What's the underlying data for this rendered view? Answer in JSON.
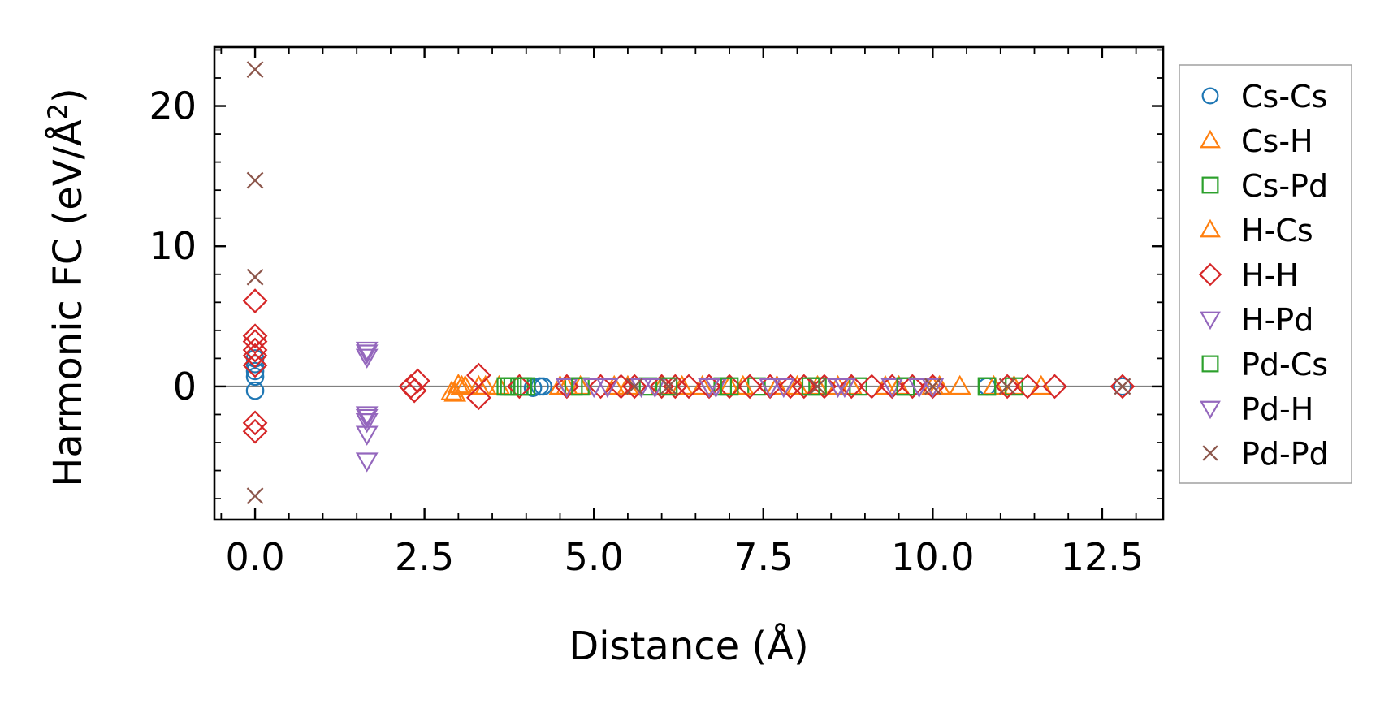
{
  "chart_data": {
    "type": "scatter",
    "title": "",
    "xlabel": "Distance (Å)",
    "ylabel_main": "Harmonic FC (eV/Å",
    "ylabel_sup": "2",
    "ylabel_close": ")",
    "xlim": [
      -0.6,
      13.4
    ],
    "ylim": [
      -9.5,
      24.2
    ],
    "xticks": [
      0.0,
      2.5,
      5.0,
      7.5,
      10.0,
      12.5
    ],
    "xtick_labels": [
      "0.0",
      "2.5",
      "5.0",
      "7.5",
      "10.0",
      "12.5"
    ],
    "yticks": [
      0,
      10,
      20
    ],
    "ytick_labels": [
      "0",
      "10",
      "20"
    ],
    "reference_line_y": 0,
    "legend_position": "outside right",
    "series": [
      {
        "name": "Cs-Cs",
        "marker": "circle",
        "color": "#1f77b4",
        "points": [
          [
            0,
            -0.3
          ],
          [
            0,
            0.7
          ],
          [
            0,
            1.1
          ],
          [
            0,
            1.6
          ],
          [
            0,
            2.0
          ],
          [
            4.1,
            -0.1
          ],
          [
            4.2,
            0.0
          ],
          [
            4.25,
            0.0
          ],
          [
            10.8,
            0.0
          ],
          [
            12.8,
            0.0
          ]
        ]
      },
      {
        "name": "Cs-H",
        "marker": "triangle-up",
        "color": "#ff7f0e",
        "points": [
          [
            2.95,
            -0.5
          ],
          [
            3.0,
            0.1
          ],
          [
            3.1,
            0.0
          ],
          [
            3.4,
            0.0
          ],
          [
            3.6,
            0.0
          ],
          [
            4.5,
            0.0
          ],
          [
            4.8,
            0.0
          ],
          [
            5.3,
            0.0
          ],
          [
            6.0,
            0.0
          ],
          [
            6.6,
            0.0
          ],
          [
            7.0,
            0.0
          ],
          [
            7.7,
            0.0
          ],
          [
            8.3,
            0.0
          ],
          [
            8.8,
            0.0
          ],
          [
            9.5,
            0.0
          ],
          [
            10.0,
            0.0
          ],
          [
            10.4,
            0.0
          ],
          [
            11.2,
            0.0
          ],
          [
            11.6,
            0.0
          ]
        ]
      },
      {
        "name": "Cs-Pd",
        "marker": "square",
        "color": "#2ca02c",
        "points": [
          [
            3.7,
            0.0
          ],
          [
            3.8,
            0.0
          ],
          [
            3.9,
            0.0
          ],
          [
            4.0,
            0.0
          ],
          [
            4.7,
            0.0
          ],
          [
            5.8,
            0.0
          ],
          [
            6.9,
            0.0
          ],
          [
            7.4,
            0.0
          ],
          [
            8.3,
            0.0
          ],
          [
            8.9,
            0.0
          ],
          [
            9.6,
            0.0
          ],
          [
            10.8,
            0.0
          ],
          [
            11.2,
            0.0
          ]
        ]
      },
      {
        "name": "H-Cs",
        "marker": "triangle-up",
        "color": "#ff7f0e",
        "points": [
          [
            2.9,
            -0.4
          ],
          [
            3.05,
            0.0
          ],
          [
            3.3,
            0.0
          ],
          [
            4.6,
            0.0
          ],
          [
            5.5,
            0.0
          ],
          [
            6.3,
            0.0
          ],
          [
            7.2,
            0.0
          ],
          [
            8.0,
            0.0
          ],
          [
            8.6,
            0.0
          ],
          [
            9.3,
            0.0
          ],
          [
            10.1,
            0.0
          ],
          [
            10.9,
            0.0
          ]
        ]
      },
      {
        "name": "H-H",
        "marker": "diamond",
        "color": "#d62728",
        "points": [
          [
            0,
            6.1
          ],
          [
            0,
            3.6
          ],
          [
            0,
            3.2
          ],
          [
            0,
            2.6
          ],
          [
            0,
            2.2
          ],
          [
            0,
            1.5
          ],
          [
            0,
            -2.6
          ],
          [
            0,
            -3.2
          ],
          [
            2.3,
            0.0
          ],
          [
            2.35,
            -0.3
          ],
          [
            2.4,
            0.4
          ],
          [
            3.3,
            0.8
          ],
          [
            3.3,
            -0.8
          ],
          [
            3.9,
            0.0
          ],
          [
            4.6,
            0.0
          ],
          [
            5.1,
            0.0
          ],
          [
            5.4,
            0.0
          ],
          [
            5.6,
            0.0
          ],
          [
            6.0,
            0.0
          ],
          [
            6.2,
            0.0
          ],
          [
            6.4,
            0.0
          ],
          [
            6.7,
            0.0
          ],
          [
            7.0,
            0.0
          ],
          [
            7.3,
            0.0
          ],
          [
            7.6,
            0.0
          ],
          [
            7.9,
            0.0
          ],
          [
            8.1,
            0.0
          ],
          [
            8.4,
            0.0
          ],
          [
            8.8,
            0.0
          ],
          [
            9.1,
            0.0
          ],
          [
            9.4,
            0.0
          ],
          [
            9.7,
            0.0
          ],
          [
            10.0,
            0.0
          ],
          [
            11.1,
            0.0
          ],
          [
            11.4,
            0.0
          ],
          [
            11.8,
            0.0
          ],
          [
            12.8,
            0.0
          ]
        ]
      },
      {
        "name": "H-Pd",
        "marker": "triangle-down",
        "color": "#9467bd",
        "points": [
          [
            1.65,
            2.6
          ],
          [
            1.65,
            2.1
          ],
          [
            1.65,
            -2.0
          ],
          [
            1.65,
            -2.5
          ],
          [
            1.65,
            -3.4
          ],
          [
            1.65,
            -5.3
          ],
          [
            4.6,
            0.0
          ],
          [
            5.2,
            0.0
          ],
          [
            5.9,
            0.0
          ],
          [
            6.8,
            0.0
          ],
          [
            7.6,
            0.0
          ],
          [
            8.6,
            0.0
          ],
          [
            9.4,
            0.0
          ],
          [
            10.0,
            0.0
          ]
        ]
      },
      {
        "name": "Pd-Cs",
        "marker": "square",
        "color": "#2ca02c",
        "points": [
          [
            3.75,
            0.0
          ],
          [
            3.95,
            0.0
          ],
          [
            4.8,
            0.0
          ],
          [
            6.1,
            0.0
          ],
          [
            7.0,
            0.0
          ],
          [
            8.2,
            0.0
          ],
          [
            9.6,
            0.0
          ],
          [
            10.8,
            0.0
          ]
        ]
      },
      {
        "name": "Pd-H",
        "marker": "triangle-down",
        "color": "#9467bd",
        "points": [
          [
            1.65,
            2.4
          ],
          [
            1.65,
            -2.2
          ],
          [
            5.0,
            0.0
          ],
          [
            5.7,
            0.0
          ],
          [
            6.7,
            0.0
          ],
          [
            7.8,
            0.0
          ],
          [
            8.7,
            0.0
          ],
          [
            9.8,
            0.0
          ]
        ]
      },
      {
        "name": "Pd-Pd",
        "marker": "x",
        "color": "#8c564b",
        "points": [
          [
            0,
            22.6
          ],
          [
            0,
            14.7
          ],
          [
            0,
            7.8
          ],
          [
            0,
            -7.8
          ],
          [
            5.6,
            0.0
          ],
          [
            6.1,
            0.0
          ],
          [
            8.3,
            0.0
          ],
          [
            10.0,
            0.0
          ],
          [
            11.1,
            0.0
          ],
          [
            12.8,
            0.0
          ]
        ]
      }
    ]
  }
}
